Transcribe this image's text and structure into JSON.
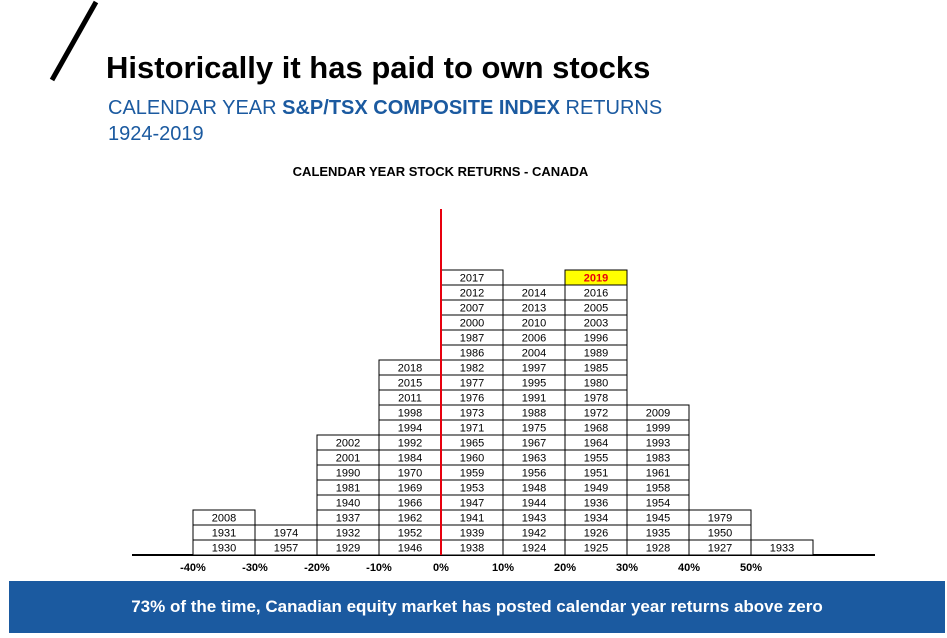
{
  "header": {
    "title": "Historically it has paid to own stocks",
    "subtitle_prefix": "CALENDAR  YEAR ",
    "subtitle_bold": "S&P/TSX COMPOSITE INDEX",
    "subtitle_suffix": " RETURNS",
    "subtitle_years": "1924-2019"
  },
  "chart_data": {
    "type": "table",
    "title": "CALENDAR YEAR STOCK RETURNS - CANADA",
    "x_tick_labels": [
      "-40%",
      "-30%",
      "-20%",
      "-10%",
      "0%",
      "10%",
      "20%",
      "30%",
      "40%",
      "50%"
    ],
    "highlight_year": "2019",
    "highlight_color": "#ffff00",
    "highlight_text_color": "#e8000e",
    "zero_line_color": "#e8000e",
    "columns": [
      {
        "bin": "-40% to -30%",
        "years": [
          "1930",
          "1931",
          "2008"
        ]
      },
      {
        "bin": "-30% to -20%",
        "years": [
          "1957",
          "1974"
        ]
      },
      {
        "bin": "-20% to -10%",
        "years": [
          "1929",
          "1932",
          "1937",
          "1940",
          "1981",
          "1990",
          "2001",
          "2002"
        ]
      },
      {
        "bin": "-10% to 0%",
        "years": [
          "1946",
          "1952",
          "1962",
          "1966",
          "1969",
          "1970",
          "1984",
          "1992",
          "1994",
          "1998",
          "2011",
          "2015",
          "2018"
        ]
      },
      {
        "bin": "0% to 10%",
        "years": [
          "1938",
          "1939",
          "1941",
          "1947",
          "1953",
          "1959",
          "1960",
          "1965",
          "1971",
          "1973",
          "1976",
          "1977",
          "1982",
          "1986",
          "1987",
          "2000",
          "2007",
          "2012",
          "2017"
        ]
      },
      {
        "bin": "10% to 20%",
        "years": [
          "1924",
          "1942",
          "1943",
          "1944",
          "1948",
          "1956",
          "1963",
          "1967",
          "1975",
          "1988",
          "1991",
          "1995",
          "1997",
          "2004",
          "2006",
          "2010",
          "2013",
          "2014"
        ]
      },
      {
        "bin": "20% to 30%",
        "years": [
          "1925",
          "1926",
          "1934",
          "1936",
          "1949",
          "1951",
          "1955",
          "1964",
          "1968",
          "1972",
          "1978",
          "1980",
          "1985",
          "1989",
          "1996",
          "2003",
          "2005",
          "2016",
          "2019"
        ]
      },
      {
        "bin": "30% to 40%",
        "years": [
          "1928",
          "1935",
          "1945",
          "1954",
          "1958",
          "1961",
          "1983",
          "1993",
          "1999",
          "2009"
        ]
      },
      {
        "bin": "40% to 50%",
        "years": [
          "1927",
          "1950",
          "1979"
        ]
      },
      {
        "bin": "50% to 60%",
        "years": [
          "1933"
        ]
      }
    ]
  },
  "footer": {
    "banner": "73% of the time, Canadian equity market has posted calendar year returns above zero"
  }
}
